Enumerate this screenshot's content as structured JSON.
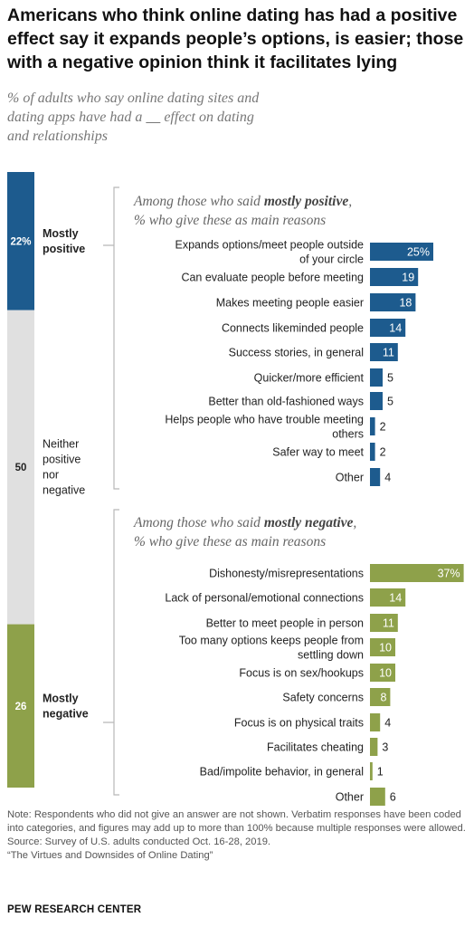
{
  "title": "Americans who think online dating has had a positive effect say it expands people’s options, is easier; those with a negative opinion think it facilitates lying",
  "subtitle": "% of adults who say online dating sites and dating apps have had a ___ effect on dating and relationships",
  "colors": {
    "positive": "#1d5b8e",
    "neutral": "#e0e0e0",
    "negative": "#8ea14a",
    "bracket": "#b8b8b8"
  },
  "chart_data": [
    {
      "type": "bar",
      "orientation": "stacked-vertical",
      "categories": [
        "Mostly positive",
        "Neither positive nor negative",
        "Mostly negative"
      ],
      "values": [
        22,
        50,
        26
      ],
      "value_labels": [
        "22%",
        "50",
        "26"
      ],
      "category_lines": [
        [
          "Mostly",
          "positive"
        ],
        [
          "Neither",
          "positive",
          "nor",
          "negative"
        ],
        [
          "Mostly",
          "negative"
        ]
      ]
    },
    {
      "type": "bar",
      "title_lines": [
        [
          "Among those who said ",
          "mostly positive",
          ","
        ],
        [
          "% who give these as main reasons",
          "",
          ""
        ]
      ],
      "categories": [
        "Expands options/meet people outside of your circle",
        "Can evaluate people before meeting",
        "Makes meeting people easier",
        "Connects likeminded people",
        "Success stories, in general",
        "Quicker/more efficient",
        "Better than old-fashioned ways",
        "Helps people who have trouble meeting others",
        "Safer way to meet",
        "Other"
      ],
      "label_lines": [
        [
          "Expands options/meet people outside",
          "of your circle"
        ],
        [
          "Can evaluate people before meeting"
        ],
        [
          "Makes meeting people easier"
        ],
        [
          "Connects likeminded people"
        ],
        [
          "Success stories, in general"
        ],
        [
          "Quicker/more efficient"
        ],
        [
          "Better than old-fashioned ways"
        ],
        [
          "Helps people who have trouble meeting",
          "others"
        ],
        [
          "Safer way to meet"
        ],
        [
          "Other"
        ]
      ],
      "values": [
        25,
        19,
        18,
        14,
        11,
        5,
        5,
        2,
        2,
        4
      ],
      "value_labels": [
        "25%",
        "19",
        "18",
        "14",
        "11",
        "5",
        "5",
        "2",
        "2",
        "4"
      ]
    },
    {
      "type": "bar",
      "title_lines": [
        [
          "Among those who said ",
          "mostly negative",
          ","
        ],
        [
          "% who give these as main reasons",
          "",
          ""
        ]
      ],
      "categories": [
        "Dishonesty/misrepresentations",
        "Lack of personal/emotional connections",
        "Better to meet people in person",
        "Too many options keeps people from settling down",
        "Focus is on sex/hookups",
        "Safety concerns",
        "Focus is on physical traits",
        "Facilitates cheating",
        "Bad/impolite behavior, in general",
        "Other"
      ],
      "label_lines": [
        [
          "Dishonesty/misrepresentations"
        ],
        [
          "Lack of personal/emotional connections"
        ],
        [
          "Better to meet people in person"
        ],
        [
          "Too many options keeps people from",
          "settling down"
        ],
        [
          "Focus is on sex/hookups"
        ],
        [
          "Safety concerns"
        ],
        [
          "Focus is on physical traits"
        ],
        [
          "Facilitates cheating"
        ],
        [
          "Bad/impolite behavior, in general"
        ],
        [
          "Other"
        ]
      ],
      "values": [
        37,
        14,
        11,
        10,
        10,
        8,
        4,
        3,
        1,
        6
      ],
      "value_labels": [
        "37%",
        "14",
        "11",
        "10",
        "10",
        "8",
        "4",
        "3",
        "1",
        "6"
      ]
    }
  ],
  "footer": {
    "note": "Note: Respondents who did not give an answer are not shown. Verbatim responses have been coded into categories, and figures may add up to more than 100% because multiple responses were allowed.",
    "source": "Source: Survey of U.S. adults conducted Oct. 16-28, 2019.",
    "report": "“The Virtues and Downsides of Online Dating”",
    "brand": "PEW RESEARCH CENTER"
  }
}
